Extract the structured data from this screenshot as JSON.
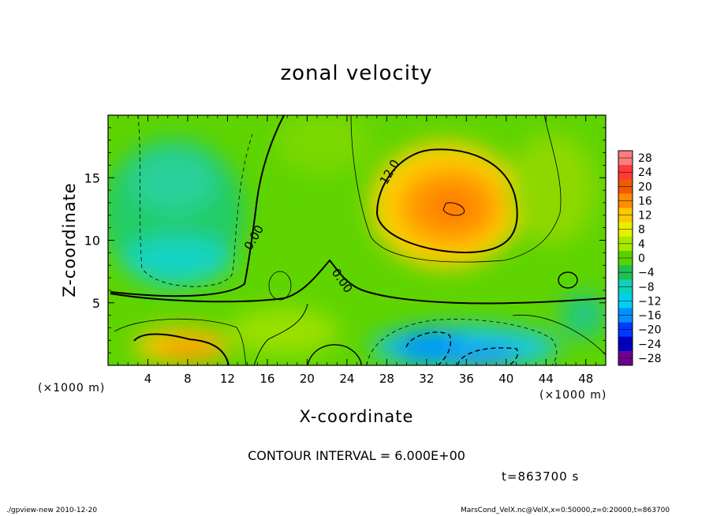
{
  "chart_data": {
    "type": "heatmap",
    "title": "zonal velocity",
    "xlabel": "X-coordinate",
    "ylabel": "Z-coordinate",
    "x_unit_label": "(×1000 m)",
    "x_ticks": [
      4,
      8,
      12,
      16,
      20,
      24,
      28,
      32,
      36,
      40,
      44,
      48
    ],
    "y_ticks": [
      5,
      10,
      15
    ],
    "xlim": [
      0,
      50
    ],
    "ylim": [
      0,
      20
    ],
    "colorbar_ticks": [
      "28",
      "24",
      "20",
      "16",
      "12",
      "8",
      "4",
      "0",
      "−4",
      "−8",
      "−12",
      "−16",
      "−20",
      "−24",
      "−28"
    ],
    "colorbar_values": [
      28,
      24,
      20,
      16,
      12,
      8,
      4,
      0,
      -4,
      -8,
      -12,
      -16,
      -20,
      -24,
      -28
    ],
    "colorbar_colors": [
      "#ff7c7c",
      "#ff3a3a",
      "#f05a00",
      "#ff8c00",
      "#ffc800",
      "#e6f000",
      "#a8e800",
      "#5ad200",
      "#20c050",
      "#10d0b8",
      "#00d0f0",
      "#0090ff",
      "#0038ff",
      "#0000c0",
      "#700090"
    ],
    "contour_labels": [
      "12.0",
      "0.00",
      "0.00"
    ],
    "contour_interval_text": "CONTOUR INTERVAL = 6.000E+00",
    "time_text": "t=863700 s",
    "footer_left": "./gpview-new  2010-12-20",
    "footer_right": "MarsCond_VelX.nc@VelX,x=0:50000,z=0:20000,t=863700",
    "field_features": [
      {
        "kind": "max",
        "x": 34.5,
        "z": 12.5,
        "value": 18
      },
      {
        "kind": "max",
        "x": 9,
        "z": 1.5,
        "value": 12
      },
      {
        "kind": "min",
        "x": 8,
        "z": 7.5,
        "value": -9
      },
      {
        "kind": "min",
        "x": 33,
        "z": 1.5,
        "value": -13
      },
      {
        "kind": "min",
        "x": 38,
        "z": 0.5,
        "value": -12
      },
      {
        "kind": "min",
        "x": 6,
        "z": 14,
        "value": -6
      }
    ]
  }
}
